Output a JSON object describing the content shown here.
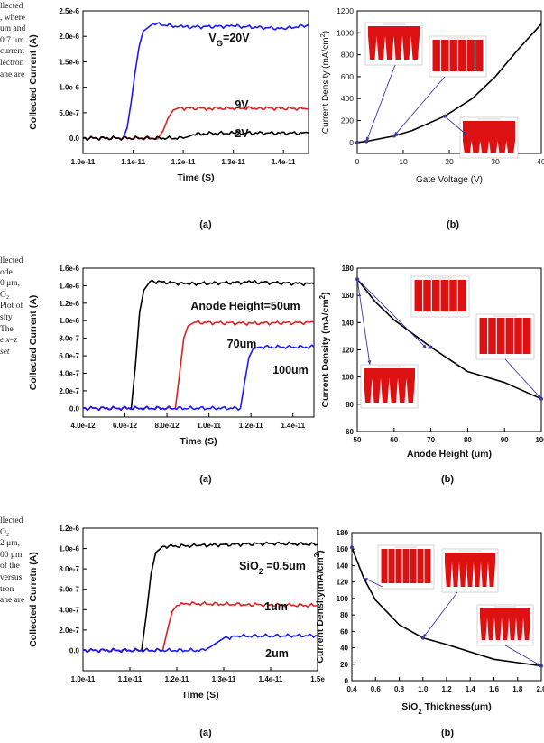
{
  "text_fragments": {
    "block1": [
      "llected",
      ", where",
      "um and",
      "0.7 μm.",
      "current",
      "lectron",
      "ane are"
    ],
    "block2": [
      "llected",
      "ode",
      "0 μm,",
      "O₂",
      "Plot of",
      "sity",
      "The",
      "e x–z",
      "set"
    ],
    "block3": [
      "llected",
      "O₂",
      "2 μm,",
      "00 μm",
      "of the",
      "versus",
      "tron",
      "ane are"
    ]
  },
  "colors": {
    "black": "#000000",
    "red": "#e02020",
    "blue": "#1a1aff",
    "arrow": "#3a3aa0",
    "inset": "#dd1111"
  },
  "figures": [
    {
      "left": {
        "chart_data": {
          "type": "line",
          "xlabel": "Time (S)",
          "ylabel": "Collected Current (A)",
          "xlim": [
            1e-11,
            1.45e-11
          ],
          "ylim": [
            -3e-07,
            2.5e-06
          ],
          "xticks": [
            "1.0e-11",
            "1.1e-11",
            "1.2e-11",
            "1.3e-11",
            "1.4e-11"
          ],
          "yticks": [
            "0.0",
            "5.0e-7",
            "1.0e-6",
            "1.5e-6",
            "2.0e-6",
            "2.5e-6"
          ],
          "series": [
            {
              "name": "V_G=20V",
              "color": "#1a1aff",
              "x": [
                1e-11,
                1.08e-11,
                1.088e-11,
                1.096e-11,
                1.104e-11,
                1.112e-11,
                1.12e-11,
                1.14e-11,
                1.2e-11,
                1.3e-11,
                1.4e-11,
                1.45e-11
              ],
              "y": [
                0,
                0,
                2e-07,
                7e-07,
                1.3e-06,
                1.8e-06,
                2.1e-06,
                2.25e-06,
                2.18e-06,
                2.2e-06,
                2.15e-06,
                2.22e-06
              ]
            },
            {
              "name": "9V",
              "color": "#e02020",
              "x": [
                1e-11,
                1.15e-11,
                1.16e-11,
                1.17e-11,
                1.18e-11,
                1.19e-11,
                1.25e-11,
                1.35e-11,
                1.45e-11
              ],
              "y": [
                0,
                0,
                1.5e-07,
                4e-07,
                5.5e-07,
                5.9e-07,
                5.85e-07,
                5.9e-07,
                5.8e-07
              ]
            },
            {
              "name": "2V",
              "color": "#000000",
              "x": [
                1e-11,
                1.2e-11,
                1.21e-11,
                1.22e-11,
                1.24e-11,
                1.3e-11,
                1.45e-11
              ],
              "y": [
                0,
                0,
                3e-08,
                7e-08,
                9e-08,
                1e-07,
                1e-07
              ]
            }
          ]
        },
        "labels": {
          "main": "V",
          "main_sub": "G",
          "main_rest": "=20V",
          "second": "9V",
          "third": "2V"
        },
        "caption": "(a)"
      },
      "right": {
        "chart_data": {
          "type": "line",
          "xlabel": "Gate Voltage (V)",
          "ylabel": "Current Density (mA/cm",
          "ylabel_sup": "2",
          "ylabel_end": ")",
          "xlim": [
            0,
            40
          ],
          "ylim": [
            -100,
            1200
          ],
          "xticks": [
            "0",
            "10",
            "20",
            "30",
            "40"
          ],
          "yticks": [
            "0",
            "200",
            "400",
            "600",
            "800",
            "1000",
            "1200"
          ],
          "series": [
            {
              "x": [
                0,
                2,
                8,
                12,
                19,
                25,
                30,
                35,
                40
              ],
              "y": [
                0,
                10,
                60,
                110,
                240,
                400,
                600,
                850,
                1080
              ]
            }
          ]
        },
        "caption": "(b)"
      }
    },
    {
      "left": {
        "chart_data": {
          "type": "line",
          "xlabel": "Time (S)",
          "ylabel": "Collected Current (A)",
          "xlim": [
            4e-12,
            1.5e-11
          ],
          "ylim": [
            -1e-07,
            1.6e-06
          ],
          "xticks": [
            "4.0e-12",
            "6.0e-12",
            "8.0e-12",
            "1.0e-11",
            "1.2e-11",
            "1.4e-11"
          ],
          "yticks": [
            "0.0",
            "2.0e-7",
            "4.0e-7",
            "6.0e-7",
            "8.0e-7",
            "1.0e-6",
            "1.2e-6",
            "1.4e-6",
            "1.6e-6"
          ],
          "series": [
            {
              "name": "Anode Height=50um",
              "color": "#000000",
              "x": [
                4e-12,
                6.3e-12,
                6.5e-12,
                6.7e-12,
                6.9e-12,
                7.2e-12,
                9e-12,
                1.2e-11,
                1.5e-11
              ],
              "y": [
                0,
                0,
                5e-07,
                1.1e-06,
                1.35e-06,
                1.45e-06,
                1.42e-06,
                1.44e-06,
                1.42e-06
              ]
            },
            {
              "name": "70um",
              "color": "#e02020",
              "x": [
                4e-12,
                8.4e-12,
                8.6e-12,
                8.8e-12,
                9e-12,
                9.3e-12,
                1.2e-11,
                1.5e-11
              ],
              "y": [
                0,
                0,
                4e-07,
                8e-07,
                9.4e-07,
                9.8e-07,
                9.7e-07,
                9.8e-07
              ]
            },
            {
              "name": "100um",
              "color": "#1a1aff",
              "x": [
                4e-12,
                1.15e-11,
                1.17e-11,
                1.19e-11,
                1.21e-11,
                1.24e-11,
                1.5e-11
              ],
              "y": [
                0,
                0,
                3e-07,
                5.8e-07,
                6.8e-07,
                7e-07,
                7e-07
              ]
            }
          ]
        },
        "labels": {
          "main": "Anode Height=50um",
          "second": "70um",
          "third": "100um"
        },
        "caption": "(a)"
      },
      "right": {
        "chart_data": {
          "type": "line",
          "xlabel": "Anode Height (um)",
          "ylabel": "Current Density (mA/cm",
          "ylabel_sup": "2",
          "ylabel_end": ")",
          "xlim": [
            50,
            100
          ],
          "ylim": [
            60,
            180
          ],
          "xticks": [
            "50",
            "60",
            "70",
            "80",
            "90",
            "100"
          ],
          "yticks": [
            "60",
            "80",
            "100",
            "120",
            "140",
            "160",
            "180"
          ],
          "series": [
            {
              "x": [
                50,
                55,
                60,
                70,
                80,
                90,
                100
              ],
              "y": [
                172,
                155,
                142,
                122,
                104,
                96,
                84
              ]
            }
          ]
        },
        "caption": "(b)"
      }
    },
    {
      "left": {
        "chart_data": {
          "type": "line",
          "xlabel": "Time (S)",
          "ylabel": "Collected Curretn (A)",
          "xlim": [
            1e-11,
            1.5e-11
          ],
          "ylim": [
            -2e-07,
            1.2e-06
          ],
          "xticks": [
            "1.0e-11",
            "1.1e-11",
            "1.2e-11",
            "1.3e-11",
            "1.4e-11",
            "1.5e"
          ],
          "yticks": [
            "0.0",
            "2.0e-7",
            "4.0e-7",
            "6.0e-7",
            "8.0e-7",
            "1.0e-6",
            "1.2e-6"
          ],
          "series": [
            {
              "name": "SiO2 =0.5um",
              "color": "#000000",
              "x": [
                1e-11,
                1.125e-11,
                1.135e-11,
                1.145e-11,
                1.155e-11,
                1.17e-11,
                1.25e-11,
                1.4e-11,
                1.5e-11
              ],
              "y": [
                0,
                0,
                3.5e-07,
                7.5e-07,
                9.6e-07,
                1.02e-06,
                1.03e-06,
                1.05e-06,
                1.04e-06
              ]
            },
            {
              "name": "1um",
              "color": "#e02020",
              "x": [
                1e-11,
                1.17e-11,
                1.18e-11,
                1.19e-11,
                1.2e-11,
                1.22e-11,
                1.35e-11,
                1.5e-11
              ],
              "y": [
                0,
                0,
                2e-07,
                3.8e-07,
                4.4e-07,
                4.6e-07,
                4.5e-07,
                4.4e-07
              ]
            },
            {
              "name": "2um",
              "color": "#1a1aff",
              "x": [
                1e-11,
                1.26e-11,
                1.28e-11,
                1.3e-11,
                1.33e-11,
                1.5e-11
              ],
              "y": [
                0,
                0,
                6e-08,
                1.2e-07,
                1.4e-07,
                1.45e-07
              ]
            }
          ]
        },
        "labels": {
          "main": "SiO",
          "main_sub": "2",
          "main_rest": " =0.5um",
          "second": "1um",
          "third": "2um"
        },
        "caption": "(a)"
      },
      "right": {
        "chart_data": {
          "type": "line",
          "xlabel": "SiO",
          "xlabel_sub": "2",
          "xlabel_rest": " Thickness(um)",
          "ylabel": "Current Density(mA/cm",
          "ylabel_sup": "2",
          "ylabel_end": ")",
          "xlim": [
            0.4,
            2.0
          ],
          "ylim": [
            0,
            180
          ],
          "xticks": [
            "0.4",
            "0.6",
            "0.8",
            "1.0",
            "1.2",
            "1.4",
            "1.6",
            "1.8",
            "2.0"
          ],
          "yticks": [
            "0",
            "20",
            "40",
            "60",
            "80",
            "100",
            "120",
            "140",
            "160",
            "180"
          ],
          "series": [
            {
              "x": [
                0.4,
                0.5,
                0.6,
                0.8,
                1.0,
                1.2,
                1.4,
                1.6,
                1.8,
                2.0
              ],
              "y": [
                162,
                125,
                98,
                68,
                52,
                44,
                35,
                26,
                22,
                18
              ]
            }
          ]
        },
        "caption": "(b)"
      }
    }
  ]
}
